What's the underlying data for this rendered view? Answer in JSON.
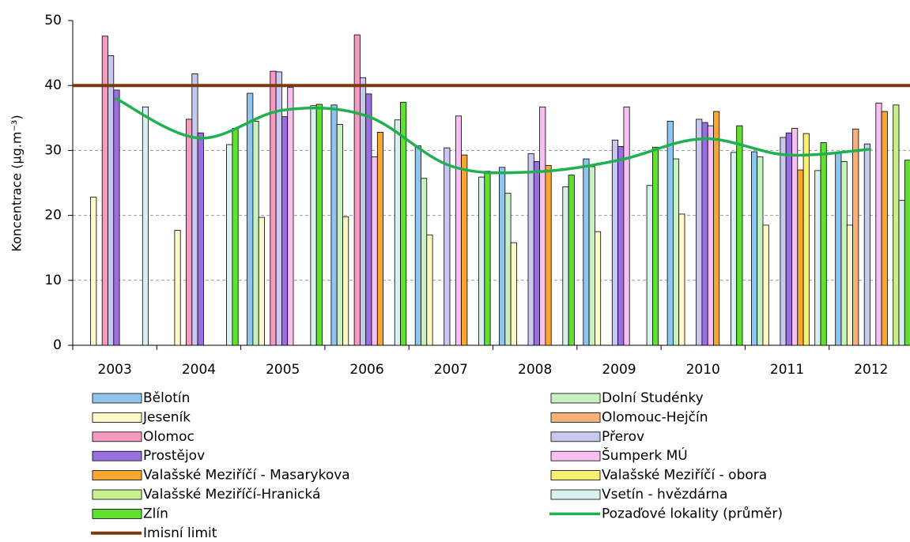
{
  "chart_data": {
    "type": "bar",
    "y_label": "Koncentrace (µg.m⁻³)",
    "categories": [
      "2003",
      "2004",
      "2005",
      "2006",
      "2007",
      "2008",
      "2009",
      "2010",
      "2011",
      "2012"
    ],
    "ylim": [
      0,
      50
    ],
    "yticks": [
      0,
      10,
      20,
      30,
      40,
      50
    ],
    "grid": true,
    "series": [
      {
        "name": "Bělotín",
        "color": "#8ec6f0",
        "values": [
          null,
          null,
          38.8,
          37,
          30.7,
          27.4,
          28.7,
          34.5,
          29.8,
          29.7
        ]
      },
      {
        "name": "Dolní Studénky",
        "color": "#c8f0c0",
        "values": [
          null,
          null,
          34.5,
          34,
          25.7,
          23.4,
          27.5,
          28.7,
          29,
          28.3
        ]
      },
      {
        "name": "Jeseník",
        "color": "#fff8c8",
        "values": [
          22.8,
          17.7,
          19.7,
          19.8,
          17,
          15.8,
          17.5,
          20.2,
          18.5,
          18.5
        ]
      },
      {
        "name": "Olomouc-Hejčín",
        "color": "#f7b27a",
        "values": [
          null,
          null,
          null,
          null,
          null,
          null,
          null,
          null,
          null,
          33.3
        ]
      },
      {
        "name": "Olomoc",
        "color": "#f59ac0",
        "values": [
          47.6,
          34.8,
          42.2,
          47.8,
          null,
          null,
          null,
          null,
          null,
          null
        ]
      },
      {
        "name": "Přerov",
        "color": "#c8c8f0",
        "values": [
          44.6,
          41.8,
          42.1,
          41.2,
          30.4,
          29.5,
          31.6,
          34.8,
          32,
          31
        ]
      },
      {
        "name": "Prostějov",
        "color": "#9a70e0",
        "values": [
          39.3,
          32.7,
          35.2,
          38.7,
          null,
          28.3,
          30.6,
          34.3,
          32.7,
          null
        ]
      },
      {
        "name": "Šumperk MÚ",
        "color": "#f8c0f0",
        "values": [
          null,
          null,
          39.7,
          29,
          35.3,
          36.7,
          36.7,
          33.8,
          33.4,
          37.3
        ]
      },
      {
        "name": "Valašské Meziříčí - Masarykova",
        "color": "#f8a830",
        "values": [
          null,
          null,
          null,
          32.8,
          29.3,
          27.7,
          null,
          36,
          27,
          36
        ]
      },
      {
        "name": "Valašské Meziříčí - obora",
        "color": "#f8f070",
        "values": [
          null,
          null,
          null,
          null,
          null,
          null,
          null,
          null,
          32.6,
          null
        ]
      },
      {
        "name": "Valašské Meziříčí-Hranická",
        "color": "#c8f090",
        "values": [
          null,
          null,
          null,
          null,
          null,
          null,
          null,
          null,
          null,
          37
        ]
      },
      {
        "name": "Vsetín - hvězdárna",
        "color": "#d8f0f0",
        "values": [
          36.7,
          30.9,
          36.9,
          34.7,
          25.9,
          24.4,
          24.6,
          29.7,
          26.9,
          22.3
        ]
      },
      {
        "name": "Zlín",
        "color": "#60e030",
        "values": [
          null,
          33.4,
          37.1,
          37.4,
          26.8,
          26.2,
          30.5,
          33.8,
          31.2,
          28.5
        ]
      }
    ],
    "line": {
      "name": "Pozaďové lokality (průměr)",
      "color": "#20b050",
      "values": [
        38.1,
        31.9,
        36.2,
        35.3,
        27.6,
        26.7,
        28.5,
        31.8,
        29.3,
        30.2
      ]
    },
    "limit": {
      "name": "Imisní limit",
      "color": "#7a3a10",
      "value": 40
    }
  }
}
